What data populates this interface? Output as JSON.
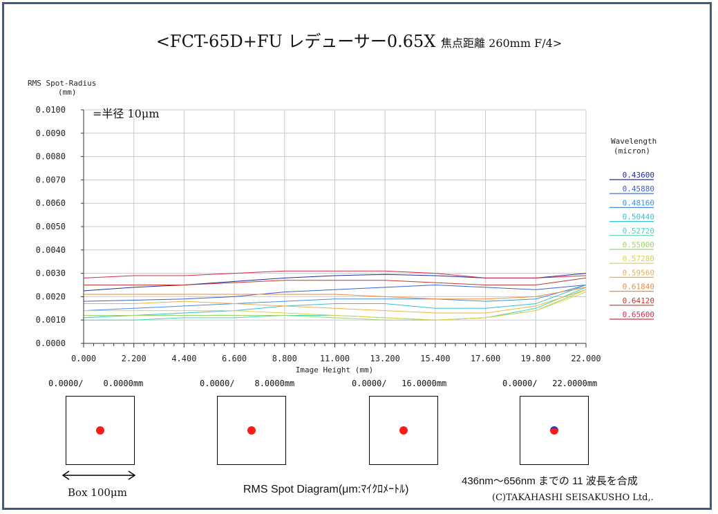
{
  "title": {
    "main": "<FCT-65D+FU レデューサー0.65X",
    "sub": "焦点距離 260mm F/4>"
  },
  "chart_data": {
    "type": "line",
    "ylabel": "RMS Spot-Radius",
    "yunit": "(mm)",
    "xlabel": "Image Height  (mm)",
    "xlim": [
      0,
      22
    ],
    "ylim": [
      0,
      0.01
    ],
    "x_ticks": [
      "0.000",
      "2.200",
      "4.400",
      "6.600",
      "8.800",
      "11.000",
      "13.200",
      "15.400",
      "17.600",
      "19.800",
      "22.000"
    ],
    "y_ticks": [
      "0.0000",
      "0.0010",
      "0.0020",
      "0.0030",
      "0.0040",
      "0.0050",
      "0.0060",
      "0.0070",
      "0.0080",
      "0.0090",
      "0.0100"
    ],
    "grid": true,
    "legend_title": "Wavelength",
    "legend_unit": "(micron)",
    "legend_position": "right",
    "annotation": "=半径 10μm",
    "x": [
      0,
      2.2,
      4.4,
      6.6,
      8.8,
      11,
      13.2,
      15.4,
      17.6,
      19.8,
      22
    ],
    "series": [
      {
        "name": "0.43600",
        "color": "#1f2ba0",
        "values": [
          0.00225,
          0.0024,
          0.0025,
          0.00265,
          0.0028,
          0.0029,
          0.00295,
          0.0029,
          0.0028,
          0.0028,
          0.003
        ]
      },
      {
        "name": "0.45880",
        "color": "#3a5fcd",
        "values": [
          0.0018,
          0.00185,
          0.0019,
          0.002,
          0.0022,
          0.0023,
          0.0024,
          0.0025,
          0.0024,
          0.0023,
          0.0025
        ]
      },
      {
        "name": "0.48160",
        "color": "#3f8fdc",
        "values": [
          0.0014,
          0.0015,
          0.0016,
          0.0017,
          0.0018,
          0.0019,
          0.0019,
          0.0019,
          0.0018,
          0.0019,
          0.0025
        ]
      },
      {
        "name": "0.50440",
        "color": "#33c0d6",
        "values": [
          0.0011,
          0.0012,
          0.0013,
          0.0014,
          0.0016,
          0.0017,
          0.0017,
          0.0015,
          0.0015,
          0.0017,
          0.0025
        ]
      },
      {
        "name": "0.52720",
        "color": "#3fd6b4",
        "values": [
          0.001,
          0.001,
          0.0011,
          0.0011,
          0.0012,
          0.0012,
          0.0011,
          0.001,
          0.0011,
          0.0015,
          0.0024
        ]
      },
      {
        "name": "0.55000",
        "color": "#9ad66a",
        "values": [
          0.0012,
          0.0012,
          0.0012,
          0.0012,
          0.0012,
          0.0011,
          0.001,
          0.001,
          0.0011,
          0.0014,
          0.0023
        ]
      },
      {
        "name": "0.57280",
        "color": "#e0d040",
        "values": [
          0.0014,
          0.0014,
          0.0014,
          0.0014,
          0.0013,
          0.0012,
          0.0011,
          0.001,
          0.0011,
          0.0014,
          0.0022
        ]
      },
      {
        "name": "0.59560",
        "color": "#f0b040",
        "values": [
          0.0017,
          0.0017,
          0.0018,
          0.0017,
          0.0016,
          0.0015,
          0.0014,
          0.0013,
          0.0013,
          0.0016,
          0.0023
        ]
      },
      {
        "name": "0.61840",
        "color": "#ef8a3a",
        "values": [
          0.0021,
          0.0021,
          0.0021,
          0.0021,
          0.0021,
          0.0021,
          0.002,
          0.0019,
          0.0019,
          0.002,
          0.0024
        ]
      },
      {
        "name": "0.64120",
        "color": "#c0392b",
        "values": [
          0.0025,
          0.0025,
          0.0025,
          0.0026,
          0.0027,
          0.0027,
          0.0027,
          0.0026,
          0.0025,
          0.0025,
          0.0028
        ]
      },
      {
        "name": "0.65600",
        "color": "#d42a4a",
        "values": [
          0.0028,
          0.0029,
          0.0029,
          0.003,
          0.0031,
          0.0031,
          0.0031,
          0.003,
          0.0028,
          0.0028,
          0.0029
        ]
      }
    ]
  },
  "spots": [
    {
      "coord": "0.0000/    0.0000mm",
      "blue": false
    },
    {
      "coord": "0.0000/    8.0000mm",
      "blue": false
    },
    {
      "coord": "0.0000/   16.0000mm",
      "blue": false
    },
    {
      "coord": "0.0000/   22.0000mm",
      "blue": true
    }
  ],
  "footer": {
    "box_label": "Box 100μm",
    "diagram_label": "RMS Spot Diagram(μm:ﾏｲｸﾛﾒｰﾄﾙ)",
    "wavelength_note": "436nm～656nm までの 11 波長を合成",
    "copyright": "(C)TAKAHASHI SEISAKUSHO Ltd,."
  }
}
